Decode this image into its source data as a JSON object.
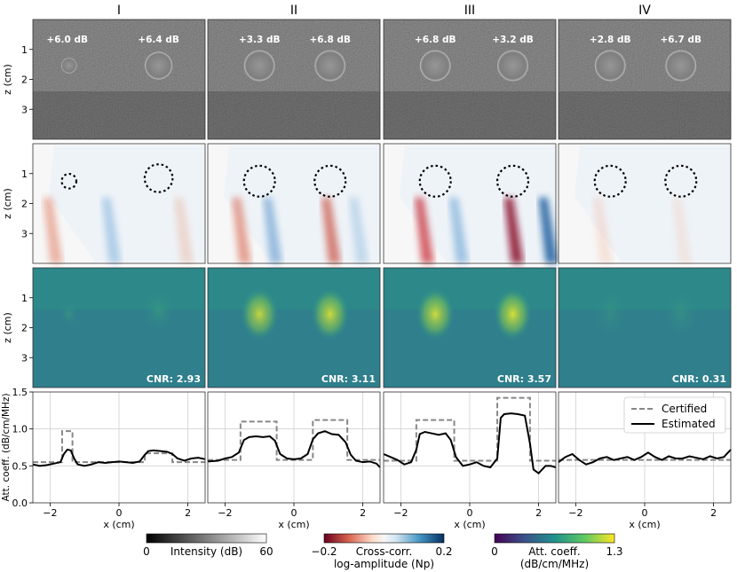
{
  "chart_data": {
    "type": "line",
    "column_titles": [
      "I",
      "II",
      "III",
      "IV"
    ],
    "row_ylabel": "z (cm)",
    "row_yticks": [
      "1",
      "2",
      "3"
    ],
    "row_yticks_values": [
      1,
      2,
      3
    ],
    "z_range": [
      0,
      4
    ],
    "bmode_labels": [
      [
        "+6.0 dB",
        "+6.4 dB"
      ],
      [
        "+3.3 dB",
        "+6.8 dB"
      ],
      [
        "+6.8 dB",
        "+3.2 dB"
      ],
      [
        "+2.8 dB",
        "+6.7 dB"
      ]
    ],
    "cnr_labels": [
      "CNR: 2.93",
      "CNR: 3.11",
      "CNR: 3.57",
      "CNR: 0.31"
    ],
    "profile": {
      "ylabel": "Att. coeff. (dB/cm/MHz)",
      "xlabel": "x (cm)",
      "xlim": [
        -2.5,
        2.5
      ],
      "ylim": [
        0.0,
        1.5
      ],
      "xticks": [
        -2,
        0,
        2
      ],
      "yticks": [
        0.0,
        0.5,
        1.0,
        1.5
      ],
      "ytick_labels": [
        "0.0",
        "0.5",
        "1.0",
        "1.5"
      ],
      "xtick_labels": [
        "−2",
        "0",
        "2"
      ],
      "legend": [
        "Certified",
        "Estimated"
      ],
      "certified": [
        [
          [
            -2.5,
            0.55
          ],
          [
            -1.65,
            0.55
          ],
          [
            -1.65,
            0.97
          ],
          [
            -1.35,
            0.97
          ],
          [
            -1.35,
            0.55
          ],
          [
            0.75,
            0.55
          ],
          [
            0.75,
            0.67
          ],
          [
            1.55,
            0.67
          ],
          [
            1.55,
            0.55
          ],
          [
            2.5,
            0.55
          ]
        ],
        [
          [
            -2.5,
            0.58
          ],
          [
            -1.55,
            0.58
          ],
          [
            -1.55,
            1.1
          ],
          [
            -0.5,
            1.1
          ],
          [
            -0.5,
            0.58
          ],
          [
            0.55,
            0.58
          ],
          [
            0.55,
            1.12
          ],
          [
            1.55,
            1.12
          ],
          [
            1.55,
            0.58
          ],
          [
            2.5,
            0.58
          ]
        ],
        [
          [
            -2.5,
            0.57
          ],
          [
            -1.55,
            0.57
          ],
          [
            -1.55,
            1.12
          ],
          [
            -0.45,
            1.12
          ],
          [
            -0.45,
            0.57
          ],
          [
            0.8,
            0.57
          ],
          [
            0.8,
            1.42
          ],
          [
            1.75,
            1.42
          ],
          [
            1.75,
            0.57
          ],
          [
            2.5,
            0.57
          ]
        ],
        [
          [
            -2.5,
            0.58
          ],
          [
            2.5,
            0.58
          ]
        ]
      ],
      "estimated": [
        [
          [
            -2.5,
            0.52
          ],
          [
            -2.3,
            0.5
          ],
          [
            -2.1,
            0.51
          ],
          [
            -1.9,
            0.53
          ],
          [
            -1.7,
            0.55
          ],
          [
            -1.6,
            0.66
          ],
          [
            -1.5,
            0.72
          ],
          [
            -1.4,
            0.71
          ],
          [
            -1.3,
            0.6
          ],
          [
            -1.2,
            0.52
          ],
          [
            -1.0,
            0.5
          ],
          [
            -0.8,
            0.52
          ],
          [
            -0.6,
            0.55
          ],
          [
            -0.4,
            0.54
          ],
          [
            -0.2,
            0.55
          ],
          [
            0.0,
            0.56
          ],
          [
            0.2,
            0.55
          ],
          [
            0.4,
            0.54
          ],
          [
            0.6,
            0.56
          ],
          [
            0.75,
            0.65
          ],
          [
            0.85,
            0.7
          ],
          [
            1.0,
            0.71
          ],
          [
            1.2,
            0.7
          ],
          [
            1.4,
            0.69
          ],
          [
            1.55,
            0.66
          ],
          [
            1.7,
            0.6
          ],
          [
            1.9,
            0.57
          ],
          [
            2.1,
            0.6
          ],
          [
            2.3,
            0.61
          ],
          [
            2.5,
            0.59
          ]
        ],
        [
          [
            -2.5,
            0.56
          ],
          [
            -2.2,
            0.57
          ],
          [
            -2.0,
            0.6
          ],
          [
            -1.8,
            0.62
          ],
          [
            -1.6,
            0.68
          ],
          [
            -1.45,
            0.85
          ],
          [
            -1.3,
            0.89
          ],
          [
            -1.1,
            0.9
          ],
          [
            -0.9,
            0.89
          ],
          [
            -0.7,
            0.9
          ],
          [
            -0.55,
            0.84
          ],
          [
            -0.4,
            0.66
          ],
          [
            -0.2,
            0.6
          ],
          [
            0.0,
            0.59
          ],
          [
            0.2,
            0.6
          ],
          [
            0.4,
            0.66
          ],
          [
            0.55,
            0.86
          ],
          [
            0.7,
            0.94
          ],
          [
            0.9,
            0.97
          ],
          [
            1.1,
            0.93
          ],
          [
            1.3,
            0.92
          ],
          [
            1.5,
            0.82
          ],
          [
            1.65,
            0.65
          ],
          [
            1.8,
            0.57
          ],
          [
            2.0,
            0.55
          ],
          [
            2.2,
            0.56
          ],
          [
            2.4,
            0.53
          ],
          [
            2.5,
            0.48
          ]
        ],
        [
          [
            -2.5,
            0.66
          ],
          [
            -2.3,
            0.62
          ],
          [
            -2.1,
            0.58
          ],
          [
            -1.9,
            0.52
          ],
          [
            -1.7,
            0.55
          ],
          [
            -1.55,
            0.72
          ],
          [
            -1.45,
            0.93
          ],
          [
            -1.3,
            0.96
          ],
          [
            -1.1,
            0.94
          ],
          [
            -0.9,
            0.92
          ],
          [
            -0.7,
            0.94
          ],
          [
            -0.55,
            0.85
          ],
          [
            -0.4,
            0.62
          ],
          [
            -0.2,
            0.5
          ],
          [
            0.0,
            0.52
          ],
          [
            0.2,
            0.55
          ],
          [
            0.4,
            0.5
          ],
          [
            0.6,
            0.48
          ],
          [
            0.8,
            0.6
          ],
          [
            0.9,
            1.15
          ],
          [
            1.0,
            1.2
          ],
          [
            1.2,
            1.21
          ],
          [
            1.4,
            1.2
          ],
          [
            1.6,
            1.18
          ],
          [
            1.75,
            0.8
          ],
          [
            1.85,
            0.45
          ],
          [
            2.0,
            0.4
          ],
          [
            2.2,
            0.5
          ],
          [
            2.35,
            0.5
          ],
          [
            2.5,
            0.48
          ]
        ],
        [
          [
            -2.5,
            0.55
          ],
          [
            -2.3,
            0.62
          ],
          [
            -2.1,
            0.66
          ],
          [
            -1.9,
            0.58
          ],
          [
            -1.7,
            0.52
          ],
          [
            -1.5,
            0.55
          ],
          [
            -1.3,
            0.6
          ],
          [
            -1.1,
            0.62
          ],
          [
            -0.9,
            0.58
          ],
          [
            -0.7,
            0.6
          ],
          [
            -0.5,
            0.62
          ],
          [
            -0.3,
            0.58
          ],
          [
            -0.1,
            0.62
          ],
          [
            0.1,
            0.68
          ],
          [
            0.3,
            0.62
          ],
          [
            0.5,
            0.58
          ],
          [
            0.7,
            0.63
          ],
          [
            0.9,
            0.6
          ],
          [
            1.1,
            0.6
          ],
          [
            1.3,
            0.63
          ],
          [
            1.5,
            0.61
          ],
          [
            1.7,
            0.59
          ],
          [
            1.9,
            0.63
          ],
          [
            2.1,
            0.6
          ],
          [
            2.3,
            0.62
          ],
          [
            2.5,
            0.72
          ]
        ]
      ]
    },
    "colorbars": [
      {
        "name": "intensity",
        "label": "Intensity (dB)",
        "min_label": "0",
        "max_label": "60"
      },
      {
        "name": "crosscorr",
        "label_line1": "Cross-corr.",
        "label_line2": "log-amplitude (Np)",
        "min_label": "−0.2",
        "max_label": "0.2"
      },
      {
        "name": "attenuation",
        "label_line1": "Att. coeff.",
        "label_line2": "(dB/cm/MHz)",
        "min_label": "0",
        "max_label": "1.3"
      }
    ]
  }
}
